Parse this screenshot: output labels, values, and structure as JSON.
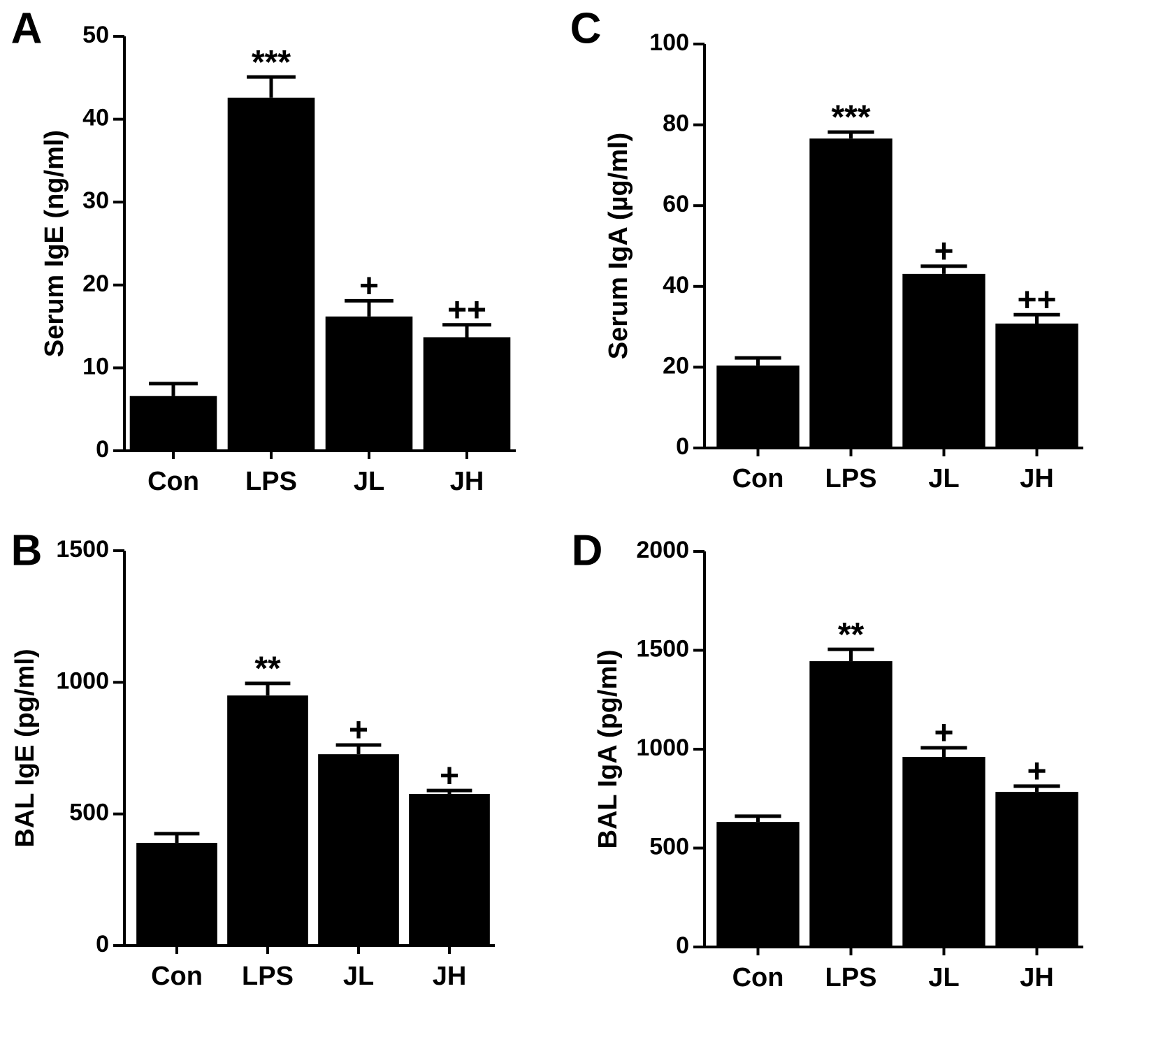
{
  "chart_data": [
    {
      "type": "bar",
      "panel": "A",
      "y_label": "Serum IgE (ng/ml)",
      "categories": [
        "Con",
        "LPS",
        "JL",
        "JH"
      ],
      "values": [
        6.6,
        42.6,
        16.2,
        13.7
      ],
      "errors": [
        1.5,
        2.5,
        1.9,
        1.5
      ],
      "annotations": [
        null,
        "***",
        "+",
        "++"
      ],
      "color": "#000000",
      "ylim": [
        0,
        50
      ],
      "yticks": [
        0,
        10,
        20,
        30,
        40,
        50
      ]
    },
    {
      "type": "bar",
      "panel": "B",
      "y_label": "BAL IgE (pg/ml)",
      "categories": [
        "Con",
        "LPS",
        "JL",
        "JH"
      ],
      "values": [
        390,
        950,
        727,
        576
      ],
      "errors": [
        35,
        46,
        35,
        13
      ],
      "annotations": [
        null,
        "**",
        "+",
        "+"
      ],
      "color": "#000000",
      "ylim": [
        0,
        1500
      ],
      "yticks": [
        0,
        500,
        1000,
        1500
      ]
    },
    {
      "type": "bar",
      "panel": "C",
      "y_label": "Serum IgA (µg/ml)",
      "categories": [
        "Con",
        "LPS",
        "JL",
        "JH"
      ],
      "values": [
        20.4,
        76.6,
        43.1,
        30.8
      ],
      "errors": [
        1.9,
        1.6,
        1.9,
        2.2
      ],
      "annotations": [
        null,
        "***",
        "+",
        "++"
      ],
      "color": "#000000",
      "ylim": [
        0,
        100
      ],
      "yticks": [
        0,
        20,
        40,
        60,
        80,
        100
      ]
    },
    {
      "type": "bar",
      "panel": "D",
      "y_label": "BAL IgA (pg/ml)",
      "categories": [
        "Con",
        "LPS",
        "JL",
        "JH"
      ],
      "values": [
        632,
        1445,
        961,
        784
      ],
      "errors": [
        29,
        60,
        46,
        29
      ],
      "annotations": [
        null,
        "**",
        "+",
        "+"
      ],
      "color": "#000000",
      "ylim": [
        0,
        2000
      ],
      "yticks": [
        0,
        500,
        1000,
        1500,
        2000
      ]
    }
  ]
}
